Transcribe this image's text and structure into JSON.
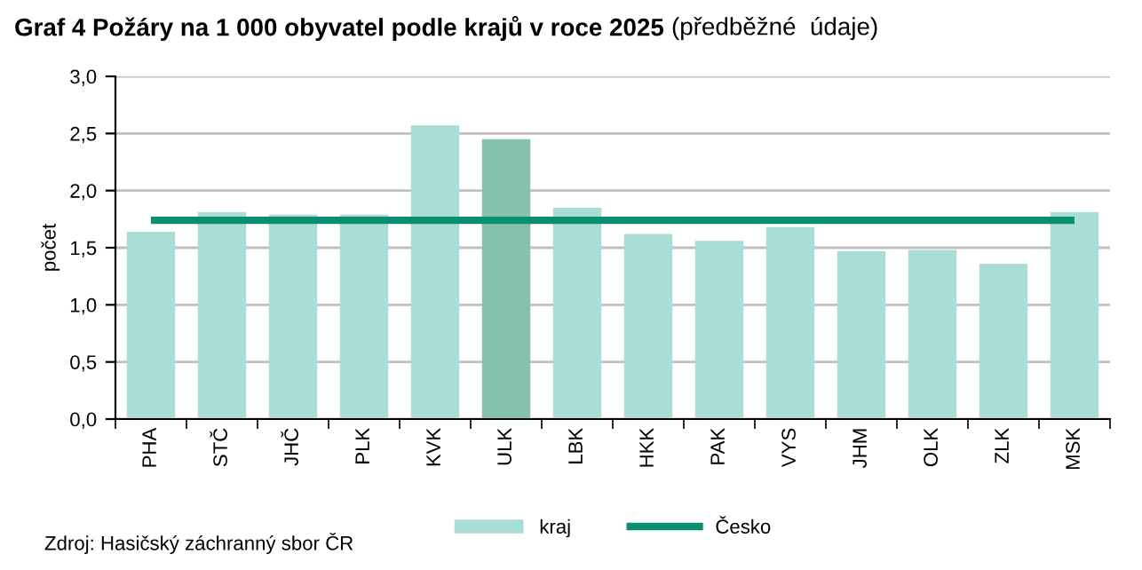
{
  "chart_data": {
    "type": "bar",
    "title": "Graf 4 Požáry na 1 000 obyvatel podle krajů v roce 2025",
    "subtitle": "(předběžné  údaje)",
    "ylabel": "počet",
    "categories": [
      "PHA",
      "STČ",
      "JHČ",
      "PLK",
      "KVK",
      "ULK",
      "LBK",
      "HKK",
      "PAK",
      "VYS",
      "JHM",
      "OLK",
      "ZLK",
      "MSK"
    ],
    "series": [
      {
        "name": "kraj",
        "color": "#a8ded5",
        "colors": [
          "#a8ded5",
          "#a8ded5",
          "#a8ded5",
          "#a8ded5",
          "#a8ded5",
          "#86c1ad",
          "#a8ded5",
          "#a8ded5",
          "#a8ded5",
          "#a8ded5",
          "#a8ded5",
          "#a8ded5",
          "#a8ded5",
          "#a8ded5"
        ],
        "values": [
          1.64,
          1.81,
          1.79,
          1.79,
          2.57,
          2.45,
          1.85,
          1.62,
          1.56,
          1.68,
          1.47,
          1.48,
          1.36,
          1.81
        ]
      },
      {
        "name": "Česko",
        "type": "line",
        "color": "#0a9070",
        "values": [
          1.74,
          1.74,
          1.74,
          1.74,
          1.74,
          1.74,
          1.74,
          1.74,
          1.74,
          1.74,
          1.74,
          1.74,
          1.74,
          1.74
        ]
      }
    ],
    "ylim": [
      0,
      3
    ],
    "yticks": [
      {
        "value": 0,
        "label": "0,0"
      },
      {
        "value": 0.5,
        "label": "0,5"
      },
      {
        "value": 1,
        "label": "1,0"
      },
      {
        "value": 1.5,
        "label": "1,5"
      },
      {
        "value": 2,
        "label": "2,0"
      },
      {
        "value": 2.5,
        "label": "2,5"
      },
      {
        "value": 3,
        "label": "3,0"
      }
    ],
    "grid": "y",
    "legend": "bottom",
    "annotations": [
      "Zdroj: Hasičský záchranný sbor ČR"
    ]
  }
}
